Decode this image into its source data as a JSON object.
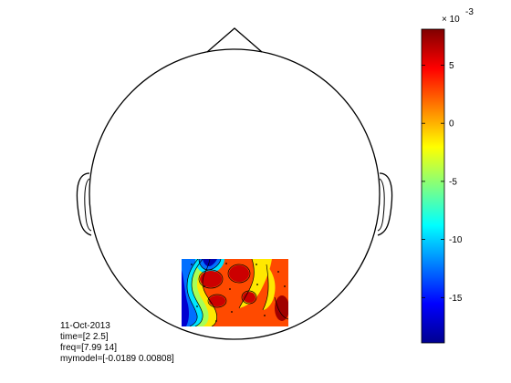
{
  "topoplot": {
    "info": {
      "date": "11-Oct-2013",
      "time": "time=[2 2.5]",
      "freq": "freq=[7.99 14]",
      "model": "mymodel=[-0.0189 0.00808]"
    }
  },
  "colorbar": {
    "colormap": "jet",
    "multiplier_base": "× 10",
    "multiplier_exponent": "-3",
    "ticks": [
      {
        "label": "5",
        "value": 5
      },
      {
        "label": "0",
        "value": 0
      },
      {
        "label": "-5",
        "value": -5
      },
      {
        "label": "-10",
        "value": -10
      },
      {
        "label": "-15",
        "value": -15
      }
    ],
    "colors": [
      "#00008f",
      "#0000ff",
      "#0080ff",
      "#00ffff",
      "#80ff80",
      "#ffff00",
      "#ff8000",
      "#ff0000",
      "#800000"
    ]
  }
}
